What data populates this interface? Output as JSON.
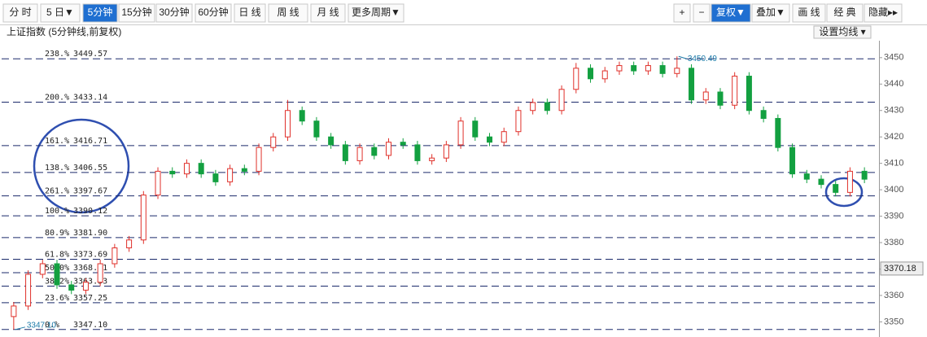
{
  "toolbar": {
    "left": [
      "分 时",
      "5 日▼",
      "5分钟",
      "15分钟",
      "30分钟",
      "60分钟",
      "日 线",
      "周 线",
      "月 线",
      "更多周期▼"
    ],
    "right": [
      "+",
      "−",
      "复权▼",
      "叠加▼",
      "画 线",
      "经 典",
      "隐藏▸▸"
    ]
  },
  "chart_data": {
    "type": "candlestick",
    "title": "上证指数 (5分钟线,前复权)",
    "button": "设置均线 ▾",
    "open": [
      3352,
      3356,
      3368,
      3372,
      3364,
      3362,
      3365,
      3372,
      3378,
      3381,
      3398,
      3407,
      3406,
      3410,
      3406,
      3403,
      3408,
      3407,
      3416,
      3420,
      3430,
      3426,
      3420,
      3417,
      3411,
      3416,
      3413,
      3418,
      3417,
      3411,
      3412,
      3417,
      3426,
      3420,
      3418,
      3422,
      3430,
      3433,
      3430,
      3438,
      3446,
      3442,
      3445,
      3447,
      3445,
      3447,
      3444,
      3446,
      3434,
      3437,
      3432,
      3443,
      3430,
      3427,
      3416,
      3406,
      3404,
      3402,
      3399,
      3407
    ],
    "high": [
      3357.5,
      3369.5,
      3373.5,
      3373.5,
      3365.5,
      3366.5,
      3373.5,
      3379.5,
      3382.5,
      3399.5,
      3408.5,
      3408.5,
      3411.5,
      3411.5,
      3407.5,
      3409.5,
      3409.5,
      3417.5,
      3421.5,
      3434,
      3431.5,
      3427.5,
      3421.5,
      3418.5,
      3417.5,
      3417.5,
      3419.5,
      3419.5,
      3418.5,
      3413.5,
      3418.5,
      3427.5,
      3427.5,
      3421.5,
      3423.5,
      3431.5,
      3434.5,
      3434.5,
      3439.5,
      3448,
      3447.5,
      3446.5,
      3448.5,
      3448.5,
      3448.5,
      3448.5,
      3450.49,
      3447.5,
      3438.5,
      3438.5,
      3444.5,
      3444.5,
      3431.5,
      3428.5,
      3417.5,
      3407.5,
      3405.5,
      3403.5,
      3408.5,
      3408.5
    ],
    "low": [
      3347.1,
      3354.5,
      3366.5,
      3362.5,
      3360.5,
      3360.5,
      3363.5,
      3370.5,
      3376.5,
      3379.5,
      3396.5,
      3404.5,
      3404.5,
      3404.5,
      3401.5,
      3401.5,
      3405.5,
      3405.5,
      3414.5,
      3418.5,
      3424.5,
      3418.5,
      3415.5,
      3409.5,
      3409.5,
      3411.5,
      3411.5,
      3415.5,
      3409.5,
      3409.5,
      3410.5,
      3415.5,
      3418.5,
      3416.5,
      3416.5,
      3420.5,
      3428.5,
      3428.5,
      3428.5,
      3436.5,
      3440.5,
      3440.5,
      3443.5,
      3443.5,
      3443.5,
      3442.5,
      3442.5,
      3432.5,
      3432.5,
      3430.5,
      3430.5,
      3428.5,
      3425.5,
      3414.5,
      3404.5,
      3402.5,
      3400.5,
      3397.5,
      3397.5,
      3402.5
    ],
    "close": [
      3356,
      3368,
      3372,
      3364,
      3362,
      3365,
      3372,
      3378,
      3381,
      3398,
      3407,
      3406,
      3410,
      3406,
      3403,
      3408,
      3407,
      3416,
      3420,
      3430,
      3426,
      3420,
      3417,
      3411,
      3416,
      3413,
      3418,
      3417,
      3411,
      3412,
      3417,
      3426,
      3420,
      3418,
      3422,
      3430,
      3433,
      3430,
      3438,
      3446,
      3442,
      3445,
      3447,
      3445,
      3447,
      3444,
      3446,
      3434,
      3437,
      3432,
      3443,
      3430,
      3427,
      3416,
      3406,
      3404,
      3402,
      3399,
      3407,
      3404
    ],
    "up_color": "#e0302a",
    "down_color": "#13a040",
    "ylim": [
      3345.5,
      3455.8
    ],
    "yticks": [
      3350,
      3360,
      3370,
      3380,
      3390,
      3400,
      3410,
      3420,
      3430,
      3440,
      3450
    ],
    "last_price": 3370.18,
    "high_marker": 3450.49,
    "low_marker": {
      "value": 3347.1,
      "label": "3347.10"
    },
    "fib_levels": [
      {
        "ratio": "238.%",
        "value": 3449.57,
        "label": "3449.57"
      },
      {
        "ratio": "200.%",
        "value": 3433.14,
        "label": "3433.14"
      },
      {
        "ratio": "161.%",
        "value": 3416.71,
        "label": "3416.71"
      },
      {
        "ratio": "138.%",
        "value": 3406.55,
        "label": "3406.55"
      },
      {
        "ratio": "261.%",
        "value": 3397.67,
        "label": "3397.67"
      },
      {
        "ratio": "100.%",
        "value": 3390.12,
        "label": "3390.12"
      },
      {
        "ratio": "80.9%",
        "value": 3381.9,
        "label": "3381.90"
      },
      {
        "ratio": "61.8%",
        "value": 3373.69,
        "label": "3373.69"
      },
      {
        "ratio": "50.0%",
        "value": 3368.61,
        "label": "3368.61"
      },
      {
        "ratio": "38.2%",
        "value": 3363.53,
        "label": "3363.53"
      },
      {
        "ratio": "23.6%",
        "value": 3357.25,
        "label": "3357.25"
      },
      {
        "ratio": "0.%",
        "value": 3347.1,
        "label": "3347.10"
      }
    ]
  }
}
